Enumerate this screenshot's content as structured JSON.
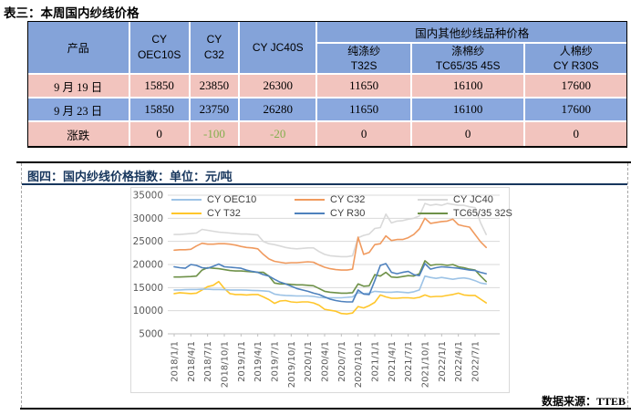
{
  "table": {
    "title": "表三：本周国内纱线价格",
    "product_header": "产品",
    "cy_oec10s": [
      "CY",
      "OEC10S"
    ],
    "cy_c32": [
      "CY",
      "C32"
    ],
    "cy_jc40s": "CY JC40S",
    "group_header": "国内其他纱线品种价格",
    "sub1": [
      "纯涤纱",
      "T32S"
    ],
    "sub2": [
      "涤棉纱",
      "TC65/35 45S"
    ],
    "sub3": [
      "人棉纱",
      "CY R30S"
    ],
    "rows": [
      {
        "label": "9 月 19 日",
        "values": [
          "15850",
          "23850",
          "26300",
          "11650",
          "16100",
          "17600"
        ]
      },
      {
        "label": "9 月 23 日",
        "values": [
          "15850",
          "23750",
          "26280",
          "11650",
          "16100",
          "17600"
        ]
      },
      {
        "label": "涨跌",
        "values": [
          "0",
          "-100",
          "-20",
          "0",
          "0",
          "0"
        ]
      }
    ],
    "negative_color": "#83AF4D",
    "header_bg": "#84A3D9",
    "pink_row_bg": "#F2C4BE",
    "blue_row_bg": "#8AA8DE"
  },
  "figure": {
    "title": "图四：国内纱线价格指数：单位：元/吨",
    "source_label": "数据来源：TTEB"
  },
  "chart_data": {
    "type": "line",
    "title": "国内纱线价格指数",
    "unit": "元/吨",
    "ylim": [
      5000,
      35000
    ],
    "ytick_step": 5000,
    "grid": true,
    "legend_position": "top-inside",
    "x_start": "2018/1",
    "x_end": "2022/9",
    "x_frequency": "monthly",
    "x_tick_labels": [
      "2018/1/1",
      "2018/4/1",
      "2018/7/1",
      "2018/10/1",
      "2019/1/1",
      "2019/4/1",
      "2019/7/1",
      "2019/10/1",
      "2020/1/1",
      "2020/4/1",
      "2020/7/1",
      "2020/10/1",
      "2021/1/1",
      "2021/4/1",
      "2021/7/1",
      "2021/10/1",
      "2022/1/1",
      "2022/4/1",
      "2022/7/1"
    ],
    "months_per_tick": 3,
    "series": [
      {
        "name": "CY OEC10",
        "color": "#9DC3E6",
        "z": 4,
        "values": [
          14500,
          14500,
          14550,
          14600,
          14600,
          14650,
          14650,
          14600,
          14600,
          14550,
          14500,
          14500,
          14500,
          14450,
          14400,
          14350,
          14300,
          14200,
          13600,
          13400,
          13300,
          13250,
          13200,
          13200,
          13200,
          13100,
          12900,
          12800,
          12800,
          12800,
          12800,
          12900,
          13000,
          13900,
          13700,
          13800,
          14200,
          14100,
          14000,
          14000,
          14100,
          14000,
          13900,
          14100,
          14500,
          17500,
          17200,
          17000,
          17200,
          17000,
          16800,
          17000,
          17100,
          16900,
          16500,
          16000,
          15800
        ]
      },
      {
        "name": "CY C32",
        "color": "#F09A5E",
        "z": 6,
        "values": [
          23100,
          23200,
          23200,
          23300,
          24000,
          24600,
          24400,
          24400,
          24500,
          24500,
          24400,
          24200,
          23900,
          23700,
          23600,
          23400,
          22200,
          21200,
          20700,
          20500,
          20300,
          20400,
          20400,
          20500,
          20600,
          20500,
          19900,
          19400,
          19100,
          18900,
          18800,
          18800,
          19000,
          25900,
          22200,
          22600,
          24300,
          24500,
          26200,
          25200,
          25400,
          25400,
          25800,
          26500,
          27700,
          30000,
          28900,
          29100,
          29300,
          29400,
          29800,
          28600,
          28300,
          28100,
          26500,
          24900,
          23700
        ]
      },
      {
        "name": "CY JC40",
        "color": "#D9D9D9",
        "z": 1,
        "values": [
          26500,
          26500,
          26600,
          26700,
          26800,
          27600,
          27400,
          27200,
          27000,
          26900,
          26800,
          26700,
          26600,
          26600,
          26500,
          26400,
          25000,
          24500,
          24300,
          24000,
          23700,
          23500,
          23400,
          23500,
          23600,
          23600,
          22800,
          22200,
          21900,
          21800,
          21700,
          21700,
          21900,
          25800,
          26300,
          26600,
          27800,
          28000,
          30900,
          29000,
          29400,
          29500,
          29800,
          30000,
          30500,
          33200,
          32800,
          33000,
          32800,
          33200,
          33000,
          32800,
          32800,
          32500,
          32300,
          29000,
          26500
        ]
      },
      {
        "name": "CY T32",
        "color": "#FFC62B",
        "z": 2,
        "values": [
          13700,
          13900,
          13800,
          13700,
          13800,
          14500,
          15200,
          15500,
          16300,
          14800,
          13700,
          13500,
          13500,
          13400,
          13500,
          13500,
          13000,
          12400,
          11600,
          12100,
          12200,
          11900,
          11800,
          11900,
          11900,
          11700,
          11200,
          10300,
          10100,
          9900,
          9400,
          9300,
          9500,
          10900,
          10600,
          11100,
          11800,
          13400,
          13000,
          12700,
          12700,
          12800,
          12800,
          12700,
          12900,
          13400,
          13000,
          13100,
          13100,
          13300,
          13500,
          13800,
          13400,
          13300,
          13300,
          12500,
          11700
        ]
      },
      {
        "name": "CY R30",
        "color": "#4E81BD",
        "z": 5,
        "values": [
          19500,
          19300,
          19200,
          20000,
          19800,
          19300,
          19200,
          19600,
          20100,
          19500,
          19400,
          19300,
          19200,
          18800,
          18500,
          18300,
          17800,
          17500,
          16800,
          16200,
          15800,
          15300,
          14800,
          14500,
          14200,
          13800,
          13500,
          13000,
          12500,
          12200,
          12000,
          11900,
          11900,
          14500,
          13600,
          13500,
          16500,
          19800,
          20200,
          18300,
          18000,
          18300,
          18500,
          17800,
          17600,
          20200,
          19000,
          19300,
          19500,
          19400,
          19300,
          19200,
          19000,
          18800,
          18700,
          18300,
          18000
        ]
      },
      {
        "name": "TC65/35 32S",
        "color": "#6E9148",
        "z": 3,
        "values": [
          17300,
          17300,
          17350,
          17400,
          17500,
          18800,
          19300,
          19200,
          19100,
          18900,
          18700,
          18600,
          18600,
          18500,
          18400,
          18300,
          18300,
          17500,
          16000,
          15800,
          15800,
          15700,
          15600,
          15600,
          15500,
          15400,
          14800,
          14200,
          14000,
          13900,
          13800,
          13800,
          13900,
          15800,
          15300,
          15400,
          17800,
          17500,
          18300,
          17300,
          17200,
          17400,
          17600,
          17500,
          18000,
          20800,
          19800,
          20000,
          20000,
          19800,
          20000,
          19500,
          19300,
          19000,
          18800,
          17500,
          16300
        ]
      }
    ]
  }
}
